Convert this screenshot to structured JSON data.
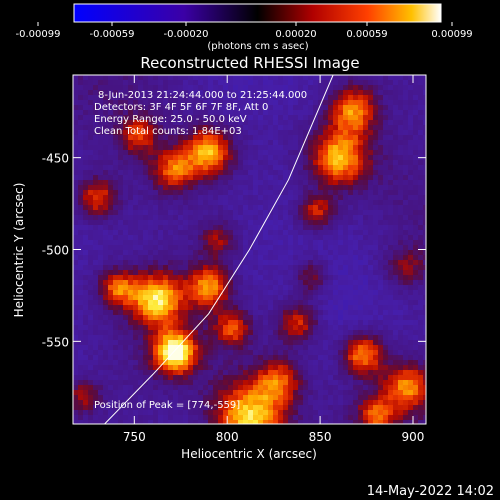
{
  "chart_data": {
    "type": "heatmap",
    "title": "Reconstructed RHESSI Image",
    "xlabel": "Heliocentric X (arcsec)",
    "ylabel": "Heliocentric Y (arcsec)",
    "xlim": [
      717,
      907
    ],
    "ylim": [
      -595,
      -405
    ],
    "x_ticks": [
      750,
      800,
      850,
      900
    ],
    "y_ticks": [
      -450,
      -500,
      -550
    ],
    "colorbar": {
      "min": -0.00099,
      "max": 0.00099,
      "ticks": [
        "-0.00099",
        "-0.00059",
        "-0.00020",
        "0.00020",
        "0.00059",
        "0.00099"
      ],
      "units_html": "(photons cm<sup>-2</sup> s<sup>-1</sup> asec<sup>-2</sup>)"
    },
    "annotations": [
      "8-Jun-2013 21:24:44.000 to 21:25:44.000",
      "Detectors: 3F 4F 5F 6F 7F 8F, Att 0",
      "Energy Range: 25.0 - 50.0 keV",
      "Clean     Total counts: 1.84E+03"
    ],
    "peak_label": "Position of Peak = [774,-559]",
    "peak": [
      774,
      -559
    ],
    "limb_curve": [
      [
        734,
        -595
      ],
      [
        760,
        -568
      ],
      [
        790,
        -535
      ],
      [
        812,
        -500
      ],
      [
        833,
        -462
      ],
      [
        857,
        -405
      ]
    ],
    "hotspots": [
      {
        "x": 772,
        "y": -556,
        "v": 1.0,
        "r": 8
      },
      {
        "x": 812,
        "y": -592,
        "v": 0.95,
        "r": 14
      },
      {
        "x": 828,
        "y": -571,
        "v": 0.55,
        "r": 9
      },
      {
        "x": 762,
        "y": -527,
        "v": 0.85,
        "r": 10
      },
      {
        "x": 741,
        "y": -521,
        "v": 0.6,
        "r": 7
      },
      {
        "x": 790,
        "y": -520,
        "v": 0.7,
        "r": 8
      },
      {
        "x": 803,
        "y": -543,
        "v": 0.55,
        "r": 7
      },
      {
        "x": 790,
        "y": -447,
        "v": 0.8,
        "r": 9
      },
      {
        "x": 771,
        "y": -457,
        "v": 0.6,
        "r": 8
      },
      {
        "x": 730,
        "y": -472,
        "v": 0.6,
        "r": 8
      },
      {
        "x": 752,
        "y": -438,
        "v": 0.5,
        "r": 7
      },
      {
        "x": 860,
        "y": -450,
        "v": 0.8,
        "r": 11
      },
      {
        "x": 868,
        "y": -424,
        "v": 0.7,
        "r": 9
      },
      {
        "x": 848,
        "y": -480,
        "v": 0.55,
        "r": 7
      },
      {
        "x": 838,
        "y": -540,
        "v": 0.6,
        "r": 8
      },
      {
        "x": 873,
        "y": -557,
        "v": 0.75,
        "r": 8
      },
      {
        "x": 897,
        "y": -575,
        "v": 0.65,
        "r": 9
      },
      {
        "x": 880,
        "y": -590,
        "v": 0.55,
        "r": 7
      },
      {
        "x": 795,
        "y": -495,
        "v": 0.4,
        "r": 7
      },
      {
        "x": 845,
        "y": -515,
        "v": 0.45,
        "r": 7
      },
      {
        "x": 896,
        "y": -510,
        "v": 0.35,
        "r": 8
      },
      {
        "x": 722,
        "y": -580,
        "v": 0.45,
        "r": 7
      }
    ]
  },
  "footer": {
    "timestamp": "14-May-2022 14:02"
  }
}
